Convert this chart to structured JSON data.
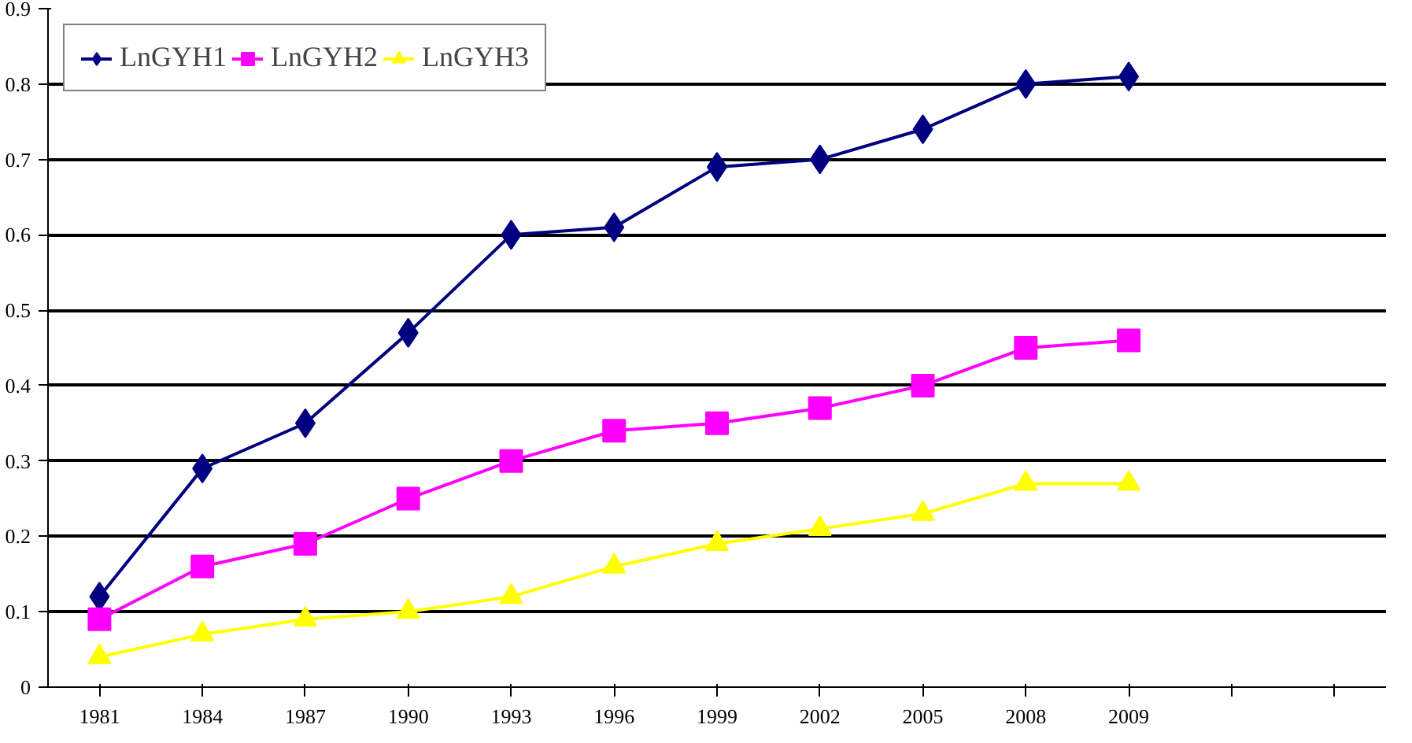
{
  "chart_data": {
    "type": "line",
    "categories": [
      "1981",
      "1984",
      "1987",
      "1990",
      "1993",
      "1996",
      "1999",
      "2002",
      "2005",
      "2008",
      "2009",
      null,
      null
    ],
    "series": [
      {
        "name": "LnGYH1",
        "color": "#000080",
        "marker": "diamond",
        "values": [
          0.12,
          0.29,
          0.35,
          0.47,
          0.6,
          0.61,
          0.69,
          0.7,
          0.74,
          0.8,
          0.81,
          null,
          null
        ]
      },
      {
        "name": "LnGYH2",
        "color": "#ff00ff",
        "marker": "square",
        "values": [
          0.09,
          0.16,
          0.19,
          0.25,
          0.3,
          0.34,
          0.35,
          0.37,
          0.4,
          0.45,
          0.46,
          null,
          null
        ]
      },
      {
        "name": "LnGYH3",
        "color": "#ffff00",
        "marker": "triangle",
        "values": [
          0.04,
          0.07,
          0.09,
          0.1,
          0.12,
          0.16,
          0.19,
          0.21,
          0.23,
          0.27,
          0.27,
          null,
          null
        ]
      }
    ],
    "ylim": [
      0,
      0.9
    ],
    "yticks": [
      0,
      0.1,
      0.2,
      0.3,
      0.4,
      0.5,
      0.6,
      0.7,
      0.8,
      0.9
    ],
    "grid": "y",
    "legend": "top",
    "line_style": "solid"
  }
}
